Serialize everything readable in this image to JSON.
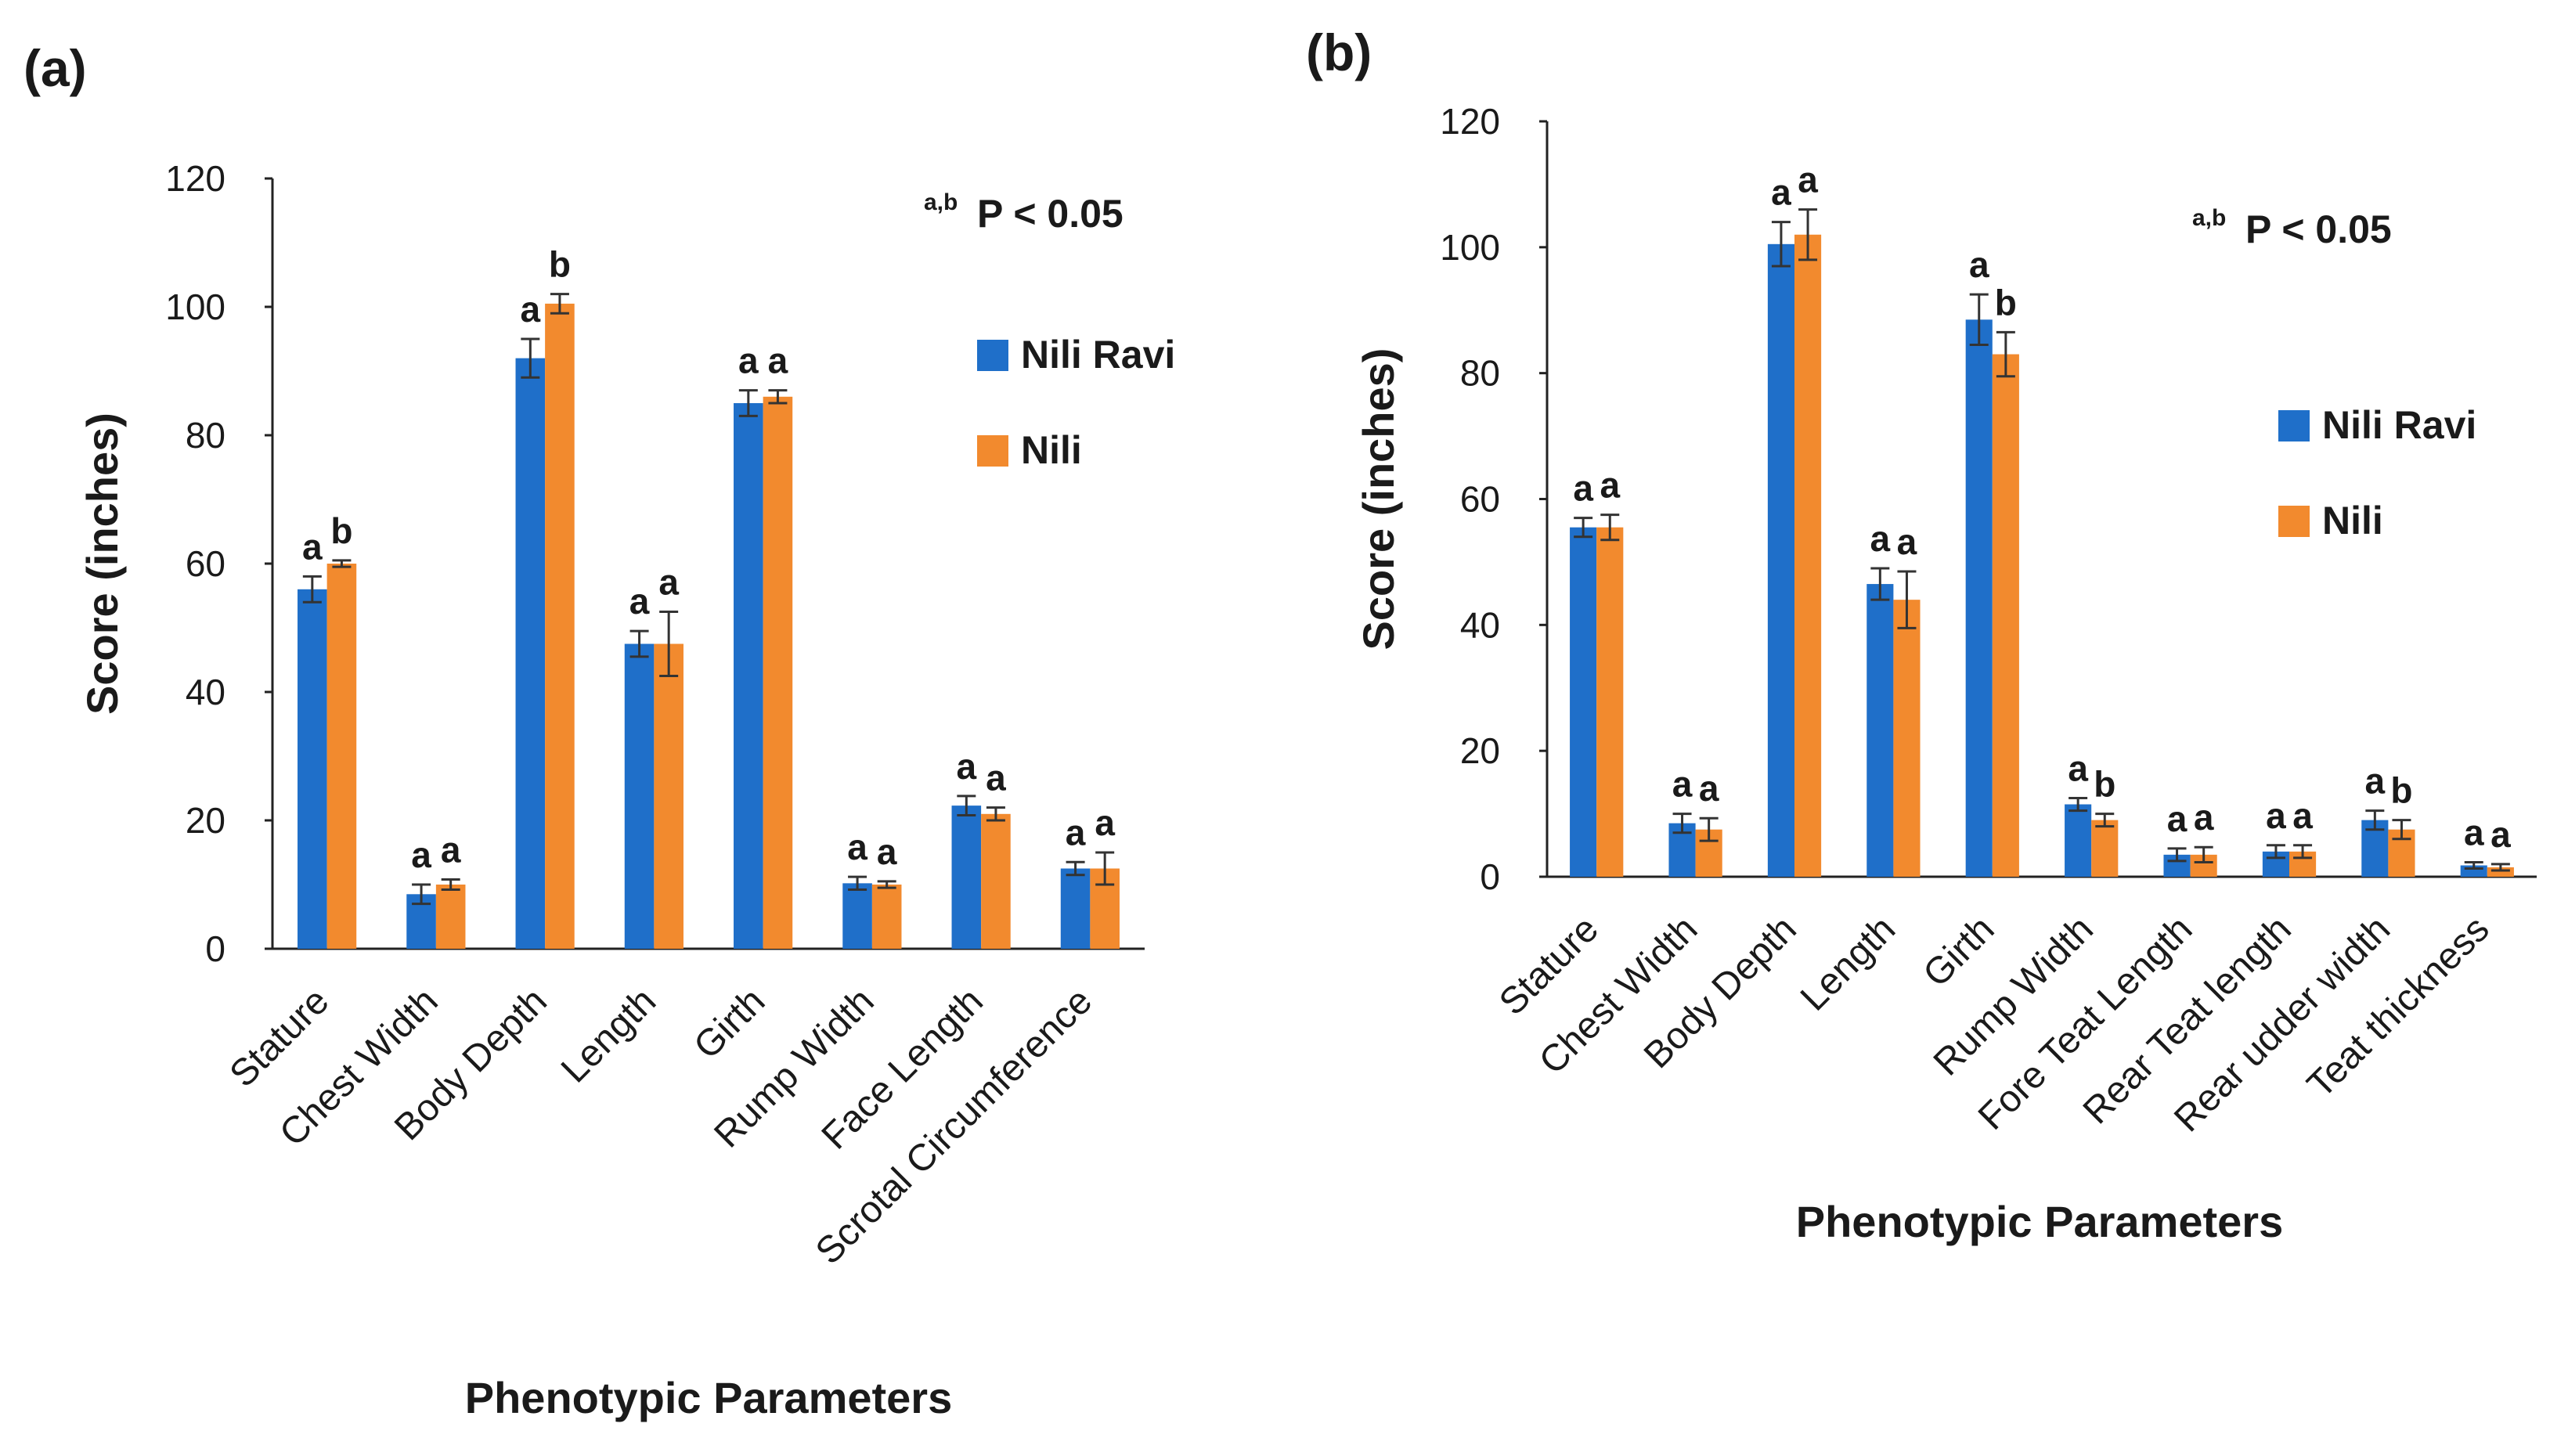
{
  "chart_data": [
    {
      "panel_label": "(a)",
      "type": "bar",
      "categories": [
        "Stature",
        "Chest Width",
        "Body Depth",
        "Length",
        "Girth",
        "Rump Width",
        "Face Length",
        "Scrotal Circumference"
      ],
      "series": [
        {
          "name": "Nili Ravi",
          "color": "#1f6fc9",
          "values": [
            56,
            8.5,
            92,
            47.5,
            85,
            10.2,
            22.3,
            12.5
          ],
          "errors": [
            2,
            1.5,
            3,
            2,
            2,
            1,
            1.5,
            1
          ],
          "letters": [
            "a",
            "a",
            "a",
            "a",
            "a",
            "a",
            "a",
            "a"
          ]
        },
        {
          "name": "Nili",
          "color": "#f28a2e",
          "values": [
            60,
            10,
            100.5,
            47.5,
            86,
            10,
            21,
            12.5
          ],
          "errors": [
            0.5,
            0.8,
            1.5,
            5,
            1,
            0.5,
            1,
            2.5
          ],
          "letters": [
            "b",
            "a",
            "b",
            "a",
            "a",
            "a",
            "a",
            "a"
          ]
        }
      ],
      "ylabel": "Score (inches)",
      "xlabel": "Phenotypic Parameters",
      "ylim": [
        0,
        120
      ],
      "yticks": [
        "0",
        "20",
        "40",
        "60",
        "80",
        "100",
        "120"
      ],
      "legend_position": "right",
      "annotation": {
        "sup": "a,b",
        "text": "P < 0.05"
      },
      "grid": false
    },
    {
      "panel_label": "(b)",
      "type": "bar",
      "categories": [
        "Stature",
        "Chest Width",
        "Body Depth",
        "Length",
        "Girth",
        "Rump Width",
        "Fore Teat Length",
        "Rear Teat length",
        "Rear udder width",
        "Teat thickness"
      ],
      "series": [
        {
          "name": "Nili Ravi",
          "color": "#1f6fc9",
          "values": [
            55.5,
            8.5,
            100.5,
            46.5,
            88.5,
            11.5,
            3.5,
            4,
            9,
            1.8
          ],
          "errors": [
            1.5,
            1.5,
            3.5,
            2.5,
            4,
            1,
            1,
            1,
            1.5,
            0.5
          ],
          "letters": [
            "a",
            "a",
            "a",
            "a",
            "a",
            "a",
            "a",
            "a",
            "a",
            "a"
          ]
        },
        {
          "name": "Nili",
          "color": "#f28a2e",
          "values": [
            55.5,
            7.5,
            102,
            44,
            83,
            9,
            3.5,
            4,
            7.5,
            1.5
          ],
          "errors": [
            2,
            1.8,
            4,
            4.5,
            3.5,
            1,
            1.2,
            1,
            1.5,
            0.5
          ],
          "letters": [
            "a",
            "a",
            "a",
            "a",
            "b",
            "b",
            "a",
            "a",
            "b",
            "a"
          ]
        }
      ],
      "ylabel": "Score (inches)",
      "xlabel": "Phenotypic Parameters",
      "ylim": [
        0,
        120
      ],
      "yticks": [
        "0",
        "20",
        "40",
        "60",
        "80",
        "100",
        "120"
      ],
      "legend_position": "right",
      "annotation": {
        "sup": "a,b",
        "text": "P < 0.05"
      },
      "grid": false
    }
  ]
}
